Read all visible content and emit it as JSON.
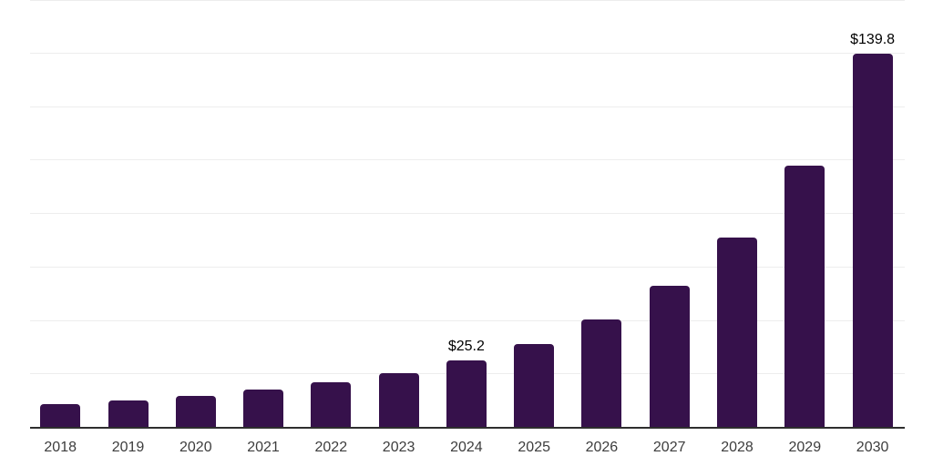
{
  "chart_data": {
    "type": "bar",
    "title": "",
    "xlabel": "",
    "ylabel": "",
    "categories": [
      "2018",
      "2019",
      "2020",
      "2021",
      "2022",
      "2023",
      "2024",
      "2025",
      "2026",
      "2027",
      "2028",
      "2029",
      "2030"
    ],
    "values": [
      8.8,
      10.1,
      12.0,
      14.2,
      16.9,
      20.4,
      25.2,
      31.2,
      40.5,
      53.0,
      71.2,
      98.2,
      139.8
    ],
    "value_labels": {
      "2024": "$25.2",
      "2030": "$139.8"
    },
    "ylim": [
      0,
      160
    ],
    "grid_step": 20,
    "grid": true,
    "legend": false,
    "legend_position": "none",
    "y_axis_labels_visible": false,
    "colors": {
      "bar": "#36114B",
      "axis": "#2e2e2e",
      "gridline": "#ededed",
      "tick_label": "#3d3d3d",
      "value_label": "#000000",
      "background": "#ffffff"
    }
  }
}
